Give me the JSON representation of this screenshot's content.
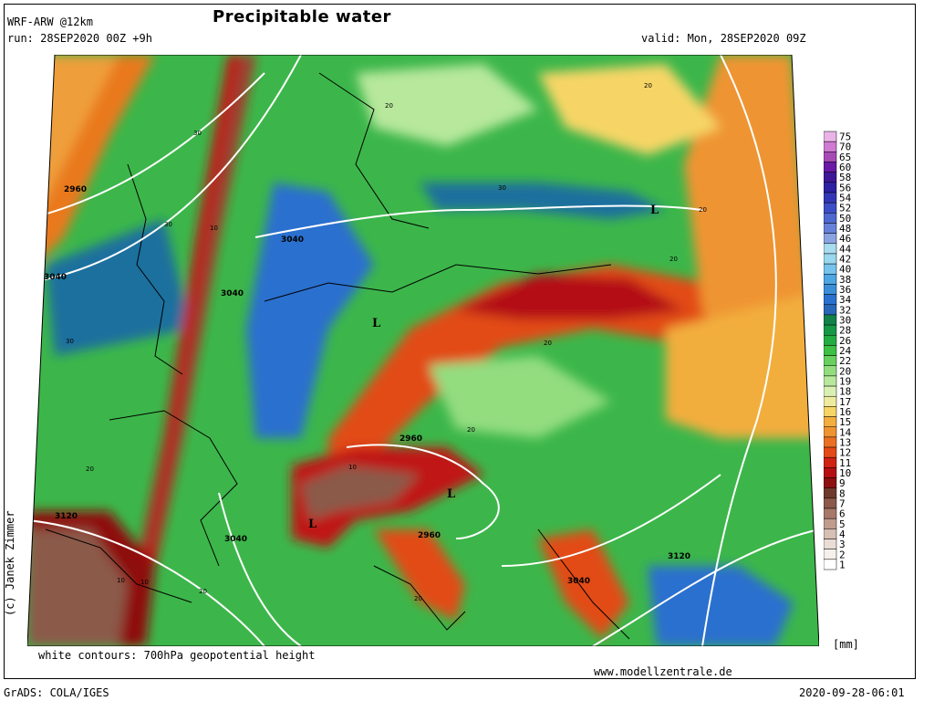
{
  "header": {
    "model": "WRF-ARW @12km",
    "run": "run: 28SEP2020 00Z +9h",
    "title": "Precipitable water",
    "valid": "valid: Mon, 28SEP2020 09Z"
  },
  "footer": {
    "contours_note": "white contours: 700hPa geopotential height",
    "unit": "[mm]",
    "website": "www.modellzentrale.de",
    "software": "GrADS: COLA/IGES",
    "timestamp": "2020-09-28-06:01",
    "copyright": "(c) Janek Zimmer"
  },
  "legend": {
    "levels": [
      "75",
      "70",
      "65",
      "60",
      "58",
      "56",
      "54",
      "52",
      "50",
      "48",
      "46",
      "44",
      "42",
      "40",
      "38",
      "36",
      "34",
      "32",
      "30",
      "28",
      "26",
      "24",
      "22",
      "20",
      "19",
      "18",
      "17",
      "16",
      "15",
      "14",
      "13",
      "12",
      "11",
      "10",
      "9",
      "8",
      "7",
      "6",
      "5",
      "4",
      "3",
      "2",
      "1"
    ],
    "colors": [
      "#e9b3e6",
      "#cf7ad3",
      "#a64ab6",
      "#6a19a6",
      "#3e1796",
      "#2d22a2",
      "#3437b5",
      "#3c4ec6",
      "#4e69d0",
      "#6781d8",
      "#8ca3e2",
      "#a9dcef",
      "#99d8ee",
      "#77c3ec",
      "#4ea6e2",
      "#3b8fd9",
      "#2a70cf",
      "#2866b8",
      "#13814a",
      "#169846",
      "#23ac42",
      "#3cc045",
      "#67d05e",
      "#93dd7f",
      "#b7e89c",
      "#d9f0b3",
      "#eeeaa0",
      "#f6d566",
      "#f2ae3e",
      "#ef9433",
      "#ea7123",
      "#e24b17",
      "#cf2313",
      "#b40f12",
      "#8e0f10",
      "#6e3a2c",
      "#8b5a4a",
      "#a7796a",
      "#c09c8e",
      "#d6bfb3",
      "#e9ddd5",
      "#f6f0ea",
      "#ffffff"
    ]
  },
  "map_labels": {
    "lows": [
      "L",
      "L",
      "L",
      "L"
    ],
    "contour_values": [
      "2960",
      "3040",
      "3040",
      "3040",
      "2960",
      "2960",
      "3040",
      "3120",
      "3120",
      "3040"
    ],
    "pw_values": [
      "30",
      "30",
      "30",
      "30",
      "20",
      "20",
      "20",
      "20",
      "20",
      "20",
      "20",
      "20",
      "20",
      "10",
      "10",
      "10",
      "10"
    ]
  }
}
